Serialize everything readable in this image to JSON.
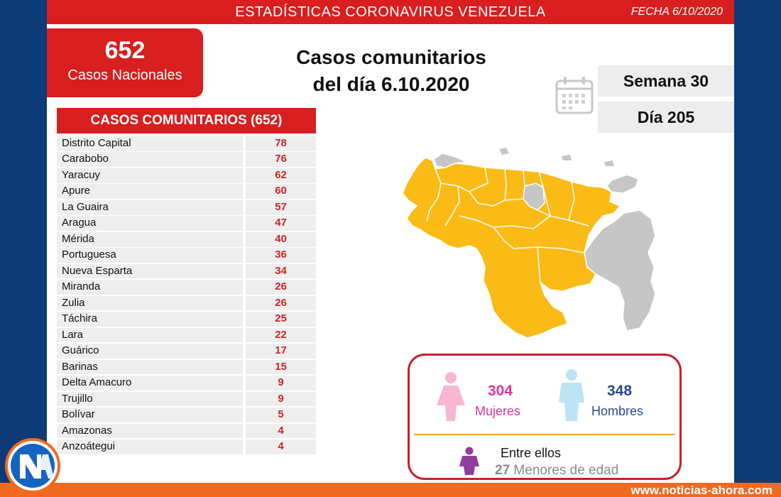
{
  "header": {
    "title": "ESTADÍSTICAS CORONAVIRUS VENEZUELA",
    "date": "FECHA 6/10/2020"
  },
  "national": {
    "count": "652",
    "label": "Casos Nacionales"
  },
  "headline": {
    "line1": "Casos comunitarios",
    "line2": "del día 6.10.2020"
  },
  "stats": {
    "week": "Semana 30",
    "day": "Día 205"
  },
  "community_table": {
    "header": "CASOS COMUNITARIOS (652)",
    "rows": [
      {
        "name": "Distrito Capital",
        "value": "78"
      },
      {
        "name": "Carabobo",
        "value": "76"
      },
      {
        "name": "Yaracuy",
        "value": "62"
      },
      {
        "name": "Apure",
        "value": "60"
      },
      {
        "name": "La Guaira",
        "value": "57"
      },
      {
        "name": "Aragua",
        "value": "47"
      },
      {
        "name": "Mérida",
        "value": "40"
      },
      {
        "name": "Portuguesa",
        "value": "36"
      },
      {
        "name": "Nueva Esparta",
        "value": "34"
      },
      {
        "name": "Miranda",
        "value": "26"
      },
      {
        "name": "Zulia",
        "value": "26"
      },
      {
        "name": "Táchira",
        "value": "25"
      },
      {
        "name": "Lara",
        "value": "22"
      },
      {
        "name": "Guárico",
        "value": "17"
      },
      {
        "name": "Barinas",
        "value": "15"
      },
      {
        "name": "Delta Amacuro",
        "value": "9"
      },
      {
        "name": "Trujillo",
        "value": "9"
      },
      {
        "name": "Bolívar",
        "value": "5"
      },
      {
        "name": "Amazonas",
        "value": "4"
      },
      {
        "name": "Anzoátegui",
        "value": "4"
      }
    ]
  },
  "demographics": {
    "women_count": "304",
    "women_label": "Mujeres",
    "men_count": "348",
    "men_label": "Hombres",
    "among_label": "Entre ellos",
    "minors_count": "27",
    "minors_label": "Menores de edad"
  },
  "footer": {
    "url": "www.noticias-ahora.com"
  },
  "colors": {
    "header_red": "#d81e1e",
    "map_affected": "#fbbb16",
    "map_unaffected": "#c6c6c6",
    "women": "#e0349b",
    "men": "#2c4a8e",
    "footer_orange": "#f16a1f"
  },
  "icons": {
    "calendar": "calendar-icon",
    "woman": "woman-figure-icon",
    "man": "man-figure-icon",
    "child": "child-figure-icon",
    "logo": "noticias-ahora-logo"
  }
}
